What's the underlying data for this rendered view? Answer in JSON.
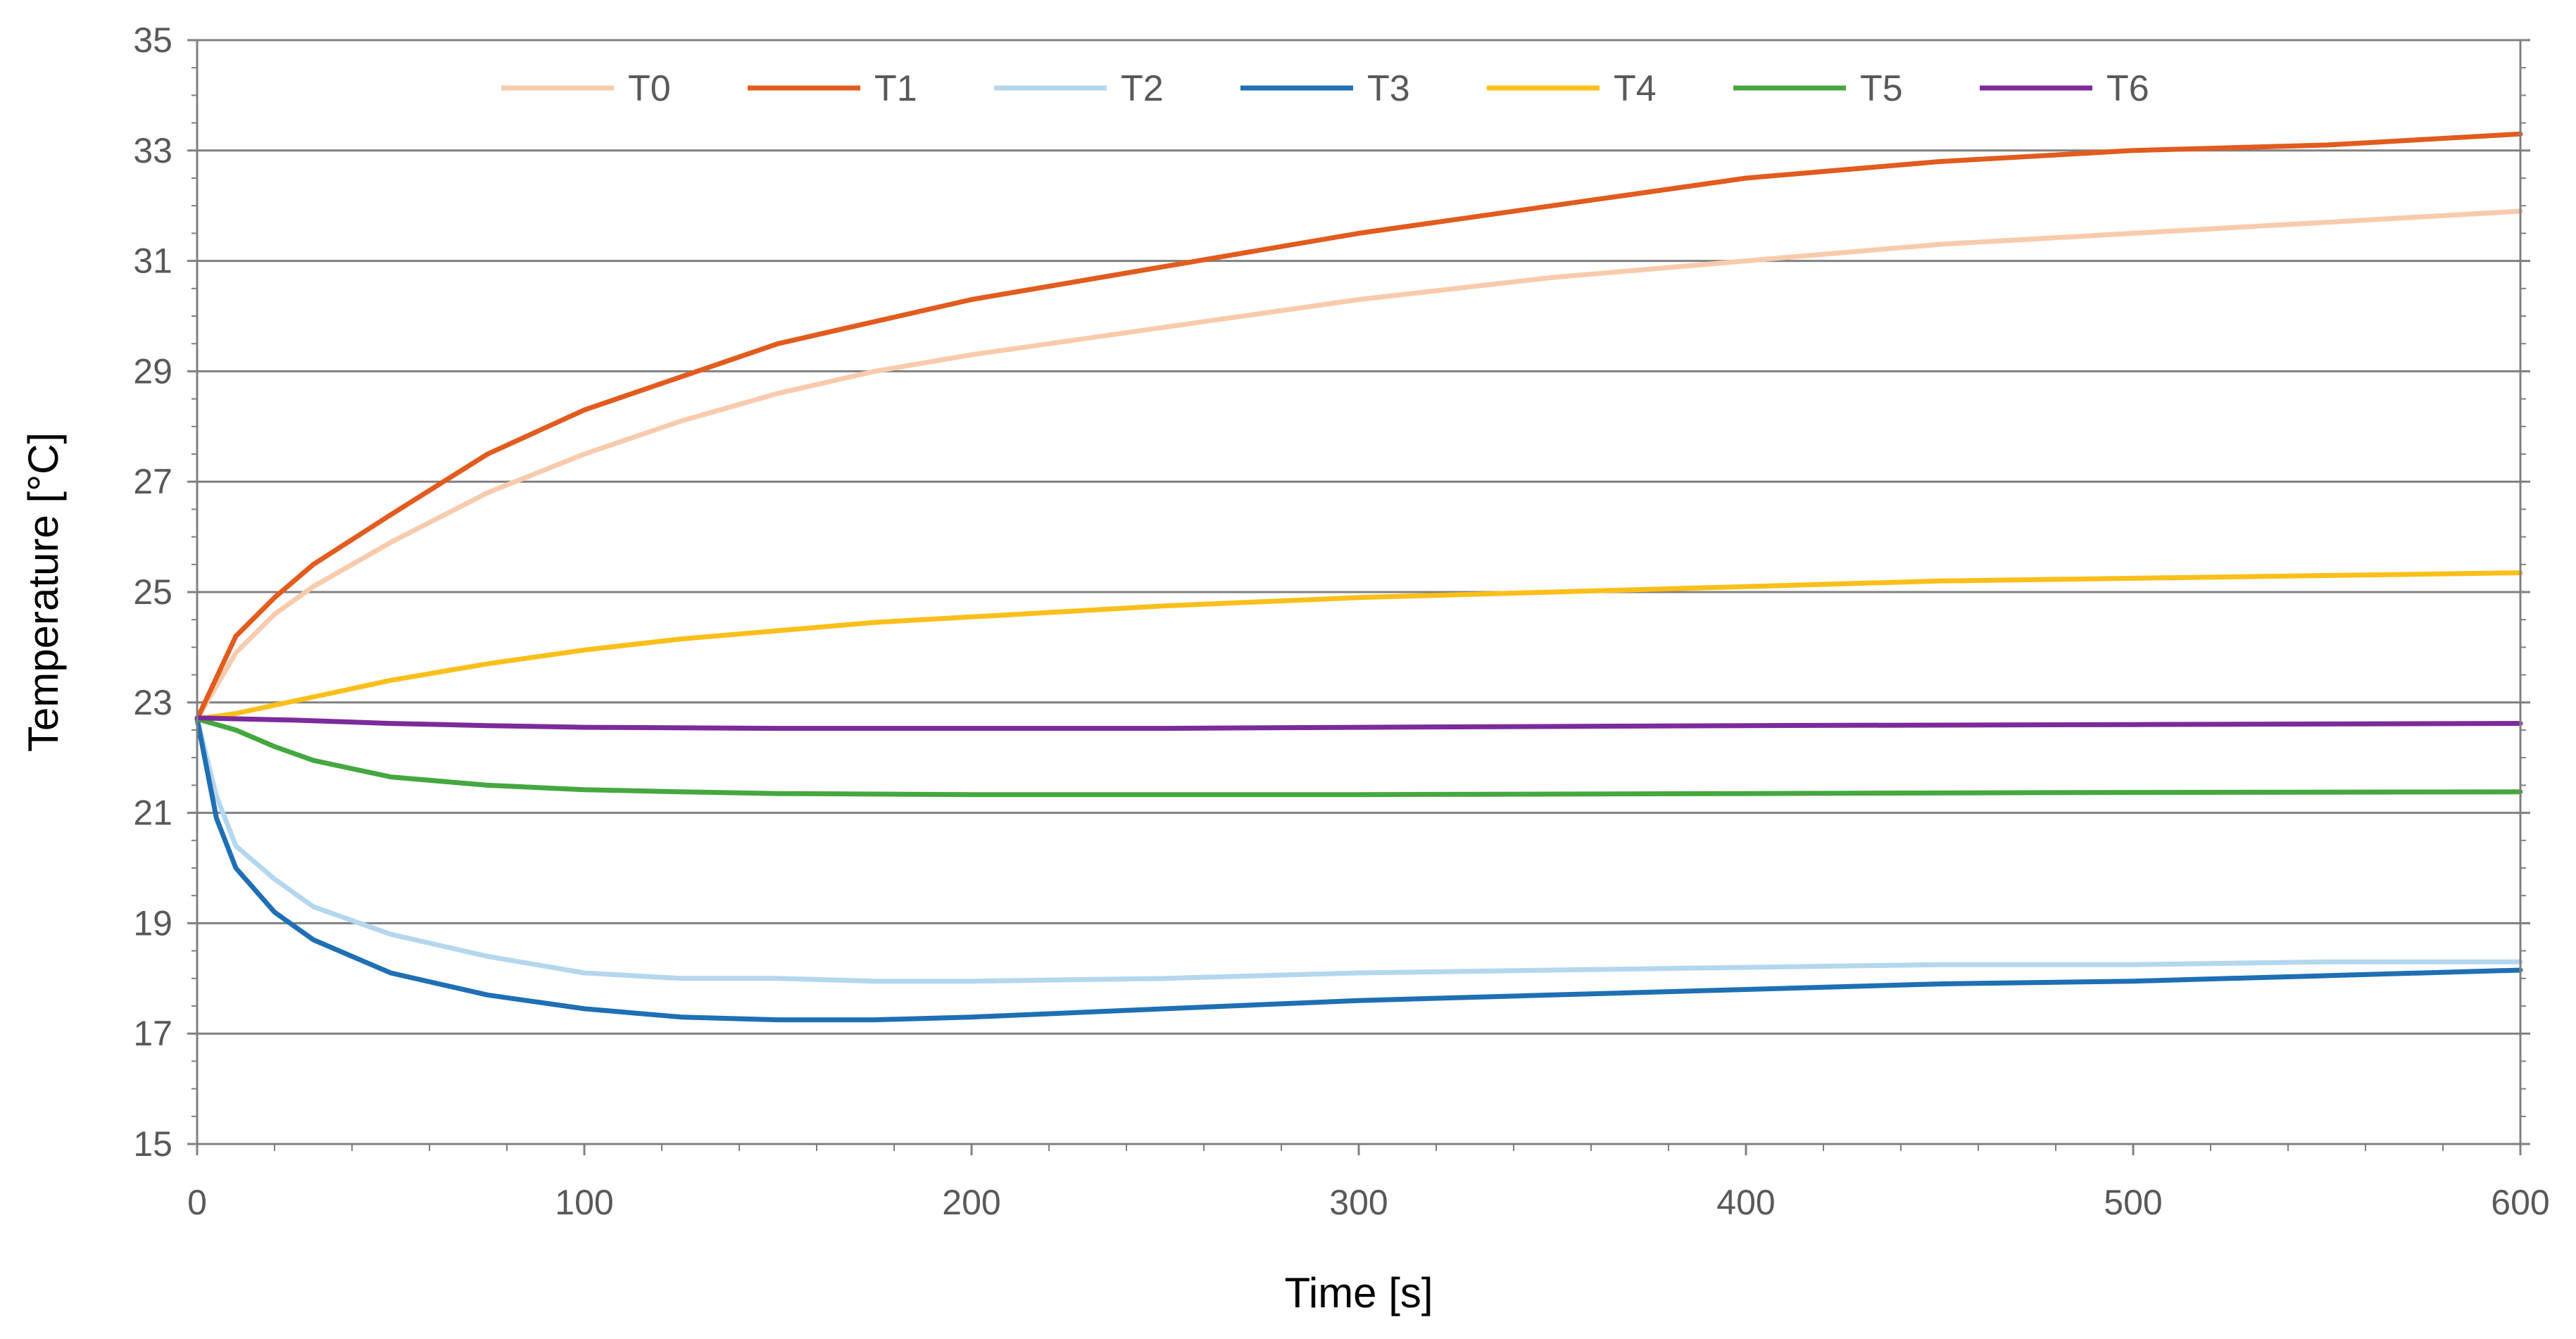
{
  "chart_data": {
    "type": "line",
    "title": "",
    "xlabel": "Time [s]",
    "ylabel": "Temperature [°C]",
    "xlim": [
      0,
      600
    ],
    "ylim": [
      15,
      35
    ],
    "x_ticks": [
      0,
      100,
      200,
      300,
      400,
      500,
      600
    ],
    "y_ticks": [
      15,
      17,
      19,
      21,
      23,
      25,
      27,
      29,
      31,
      33,
      35
    ],
    "grid": "horizontal",
    "legend_position": "top-center",
    "series": [
      {
        "name": "T0",
        "color": "#F8CBAD",
        "x": [
          0,
          10,
          20,
          30,
          50,
          75,
          100,
          125,
          150,
          175,
          200,
          250,
          300,
          350,
          400,
          450,
          500,
          550,
          600
        ],
        "y": [
          22.7,
          23.9,
          24.6,
          25.1,
          25.9,
          26.8,
          27.5,
          28.1,
          28.6,
          29.0,
          29.3,
          29.8,
          30.3,
          30.7,
          31.0,
          31.3,
          31.5,
          31.7,
          31.9
        ]
      },
      {
        "name": "T1",
        "color": "#E15C1E",
        "x": [
          0,
          10,
          20,
          30,
          50,
          75,
          100,
          125,
          150,
          175,
          200,
          250,
          300,
          350,
          400,
          450,
          500,
          550,
          600
        ],
        "y": [
          22.7,
          24.2,
          24.9,
          25.5,
          26.4,
          27.5,
          28.3,
          28.9,
          29.5,
          29.9,
          30.3,
          30.9,
          31.5,
          32.0,
          32.5,
          32.8,
          33.0,
          33.1,
          33.3
        ]
      },
      {
        "name": "T2",
        "color": "#B4D7EE",
        "x": [
          0,
          5,
          10,
          20,
          30,
          50,
          75,
          100,
          125,
          150,
          175,
          200,
          250,
          300,
          350,
          400,
          450,
          500,
          550,
          600
        ],
        "y": [
          22.7,
          21.3,
          20.4,
          19.8,
          19.3,
          18.8,
          18.4,
          18.1,
          18.0,
          18.0,
          17.95,
          17.95,
          18.0,
          18.1,
          18.15,
          18.2,
          18.25,
          18.25,
          18.3,
          18.3
        ]
      },
      {
        "name": "T3",
        "color": "#1F6FB4",
        "x": [
          0,
          5,
          10,
          20,
          30,
          50,
          75,
          100,
          125,
          150,
          175,
          200,
          250,
          300,
          350,
          400,
          450,
          500,
          550,
          600
        ],
        "y": [
          22.7,
          20.9,
          20.0,
          19.2,
          18.7,
          18.1,
          17.7,
          17.45,
          17.3,
          17.25,
          17.25,
          17.3,
          17.45,
          17.6,
          17.7,
          17.8,
          17.9,
          17.95,
          18.05,
          18.15
        ]
      },
      {
        "name": "T4",
        "color": "#FBBF1A",
        "x": [
          0,
          10,
          20,
          30,
          50,
          75,
          100,
          125,
          150,
          175,
          200,
          250,
          300,
          350,
          400,
          450,
          500,
          550,
          600
        ],
        "y": [
          22.7,
          22.8,
          22.95,
          23.1,
          23.4,
          23.7,
          23.95,
          24.15,
          24.3,
          24.45,
          24.55,
          24.75,
          24.9,
          25.0,
          25.1,
          25.2,
          25.25,
          25.3,
          25.35
        ]
      },
      {
        "name": "T5",
        "color": "#44A83F",
        "x": [
          0,
          10,
          20,
          30,
          50,
          75,
          100,
          125,
          150,
          200,
          250,
          300,
          400,
          500,
          600
        ],
        "y": [
          22.7,
          22.5,
          22.2,
          21.95,
          21.65,
          21.5,
          21.42,
          21.38,
          21.35,
          21.33,
          21.33,
          21.33,
          21.35,
          21.37,
          21.38
        ]
      },
      {
        "name": "T6",
        "color": "#7B2B9B",
        "x": [
          0,
          25,
          50,
          75,
          100,
          150,
          200,
          250,
          300,
          400,
          500,
          600
        ],
        "y": [
          22.72,
          22.68,
          22.62,
          22.58,
          22.55,
          22.53,
          22.53,
          22.53,
          22.55,
          22.58,
          22.6,
          22.62
        ]
      }
    ]
  }
}
